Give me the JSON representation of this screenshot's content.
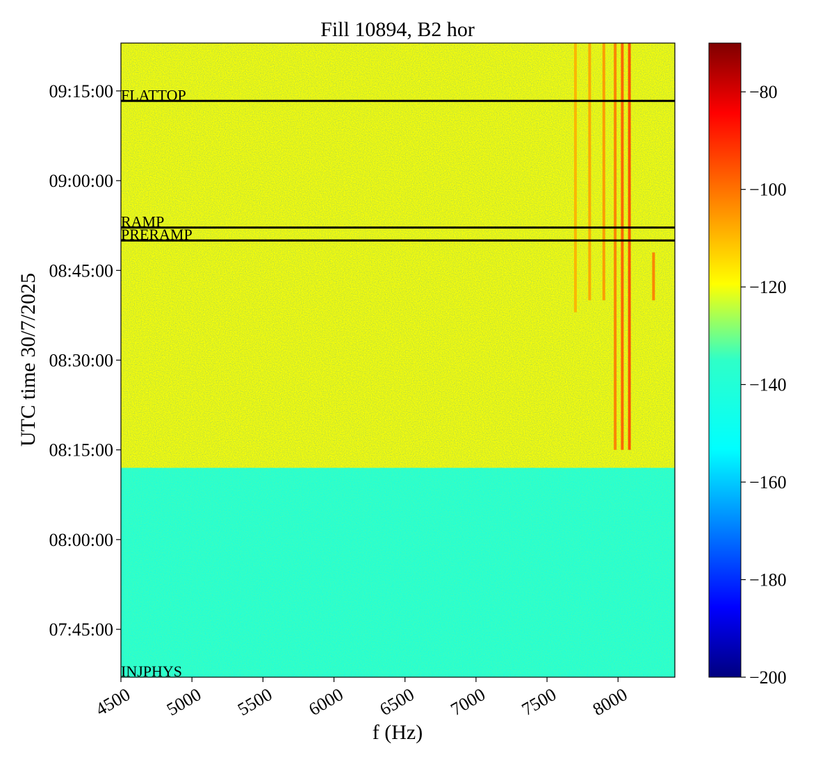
{
  "chart_data": {
    "type": "heatmap",
    "title": "Fill 10894, B2 hor",
    "xlabel": "f (Hz)",
    "ylabel": "UTC time 30/7/2025",
    "xlim": [
      4500,
      8400
    ],
    "ylim": [
      "07:37:00",
      "09:23:00"
    ],
    "x_ticks": [
      4500,
      5000,
      5500,
      6000,
      6500,
      7000,
      7500,
      8000
    ],
    "y_ticks": [
      "07:45:00",
      "08:00:00",
      "08:15:00",
      "08:30:00",
      "08:45:00",
      "09:00:00",
      "09:15:00"
    ],
    "grid": false,
    "colormap": "jet",
    "colorbar": {
      "range": [
        -200,
        -70
      ],
      "ticks": [
        -80,
        -100,
        -120,
        -140,
        -160,
        -180,
        -200
      ]
    },
    "regions": [
      {
        "from": "07:37:00",
        "to": "08:12:00",
        "level": -140
      },
      {
        "from": "08:12:00",
        "to": "09:23:00",
        "level": -120
      }
    ],
    "phase_markers": [
      {
        "label": "INJPHYS",
        "time": "07:37:00",
        "line": false
      },
      {
        "label": "PRERAMP",
        "time": "08:50:00",
        "line": true
      },
      {
        "label": "RAMP",
        "time": "08:52:10",
        "line": true
      },
      {
        "label": "FLATTOP",
        "time": "09:13:20",
        "line": true
      }
    ],
    "spectral_lines": [
      {
        "f": 7700,
        "from": "08:38:00",
        "to": "09:23:00",
        "level": -108
      },
      {
        "f": 7800,
        "from": "08:40:00",
        "to": "09:23:00",
        "level": -106
      },
      {
        "f": 7900,
        "from": "08:40:00",
        "to": "09:23:00",
        "level": -104
      },
      {
        "f": 7980,
        "from": "08:15:00",
        "to": "09:23:00",
        "level": -100
      },
      {
        "f": 8030,
        "from": "08:15:00",
        "to": "09:23:00",
        "level": -95
      },
      {
        "f": 8080,
        "from": "08:15:00",
        "to": "09:23:00",
        "level": -92
      },
      {
        "f": 8250,
        "from": "08:40:00",
        "to": "08:48:00",
        "level": -100
      }
    ]
  }
}
